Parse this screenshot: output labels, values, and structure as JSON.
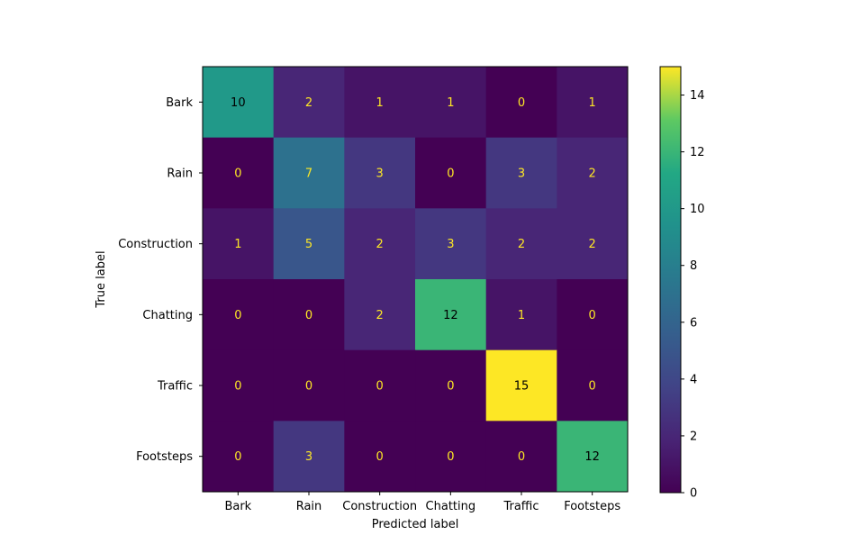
{
  "chart_data": {
    "type": "heatmap",
    "title": "",
    "xlabel": "Predicted label",
    "ylabel": "True label",
    "x_categories": [
      "Bark",
      "Rain",
      "Construction",
      "Chatting",
      "Traffic",
      "Footsteps"
    ],
    "y_categories": [
      "Bark",
      "Rain",
      "Construction",
      "Chatting",
      "Traffic",
      "Footsteps"
    ],
    "values": [
      [
        10,
        2,
        1,
        1,
        0,
        1
      ],
      [
        0,
        7,
        3,
        0,
        3,
        2
      ],
      [
        1,
        5,
        2,
        3,
        2,
        2
      ],
      [
        0,
        0,
        2,
        12,
        1,
        0
      ],
      [
        0,
        0,
        0,
        0,
        15,
        0
      ],
      [
        0,
        3,
        0,
        0,
        0,
        12
      ]
    ],
    "colormap": "viridis",
    "vmin": 0,
    "vmax": 15,
    "colorbar_ticks": [
      "0",
      "2",
      "4",
      "6",
      "8",
      "10",
      "12",
      "14"
    ],
    "grid": false,
    "text_color_light": "#fde725",
    "text_color_dark": "#000000"
  }
}
